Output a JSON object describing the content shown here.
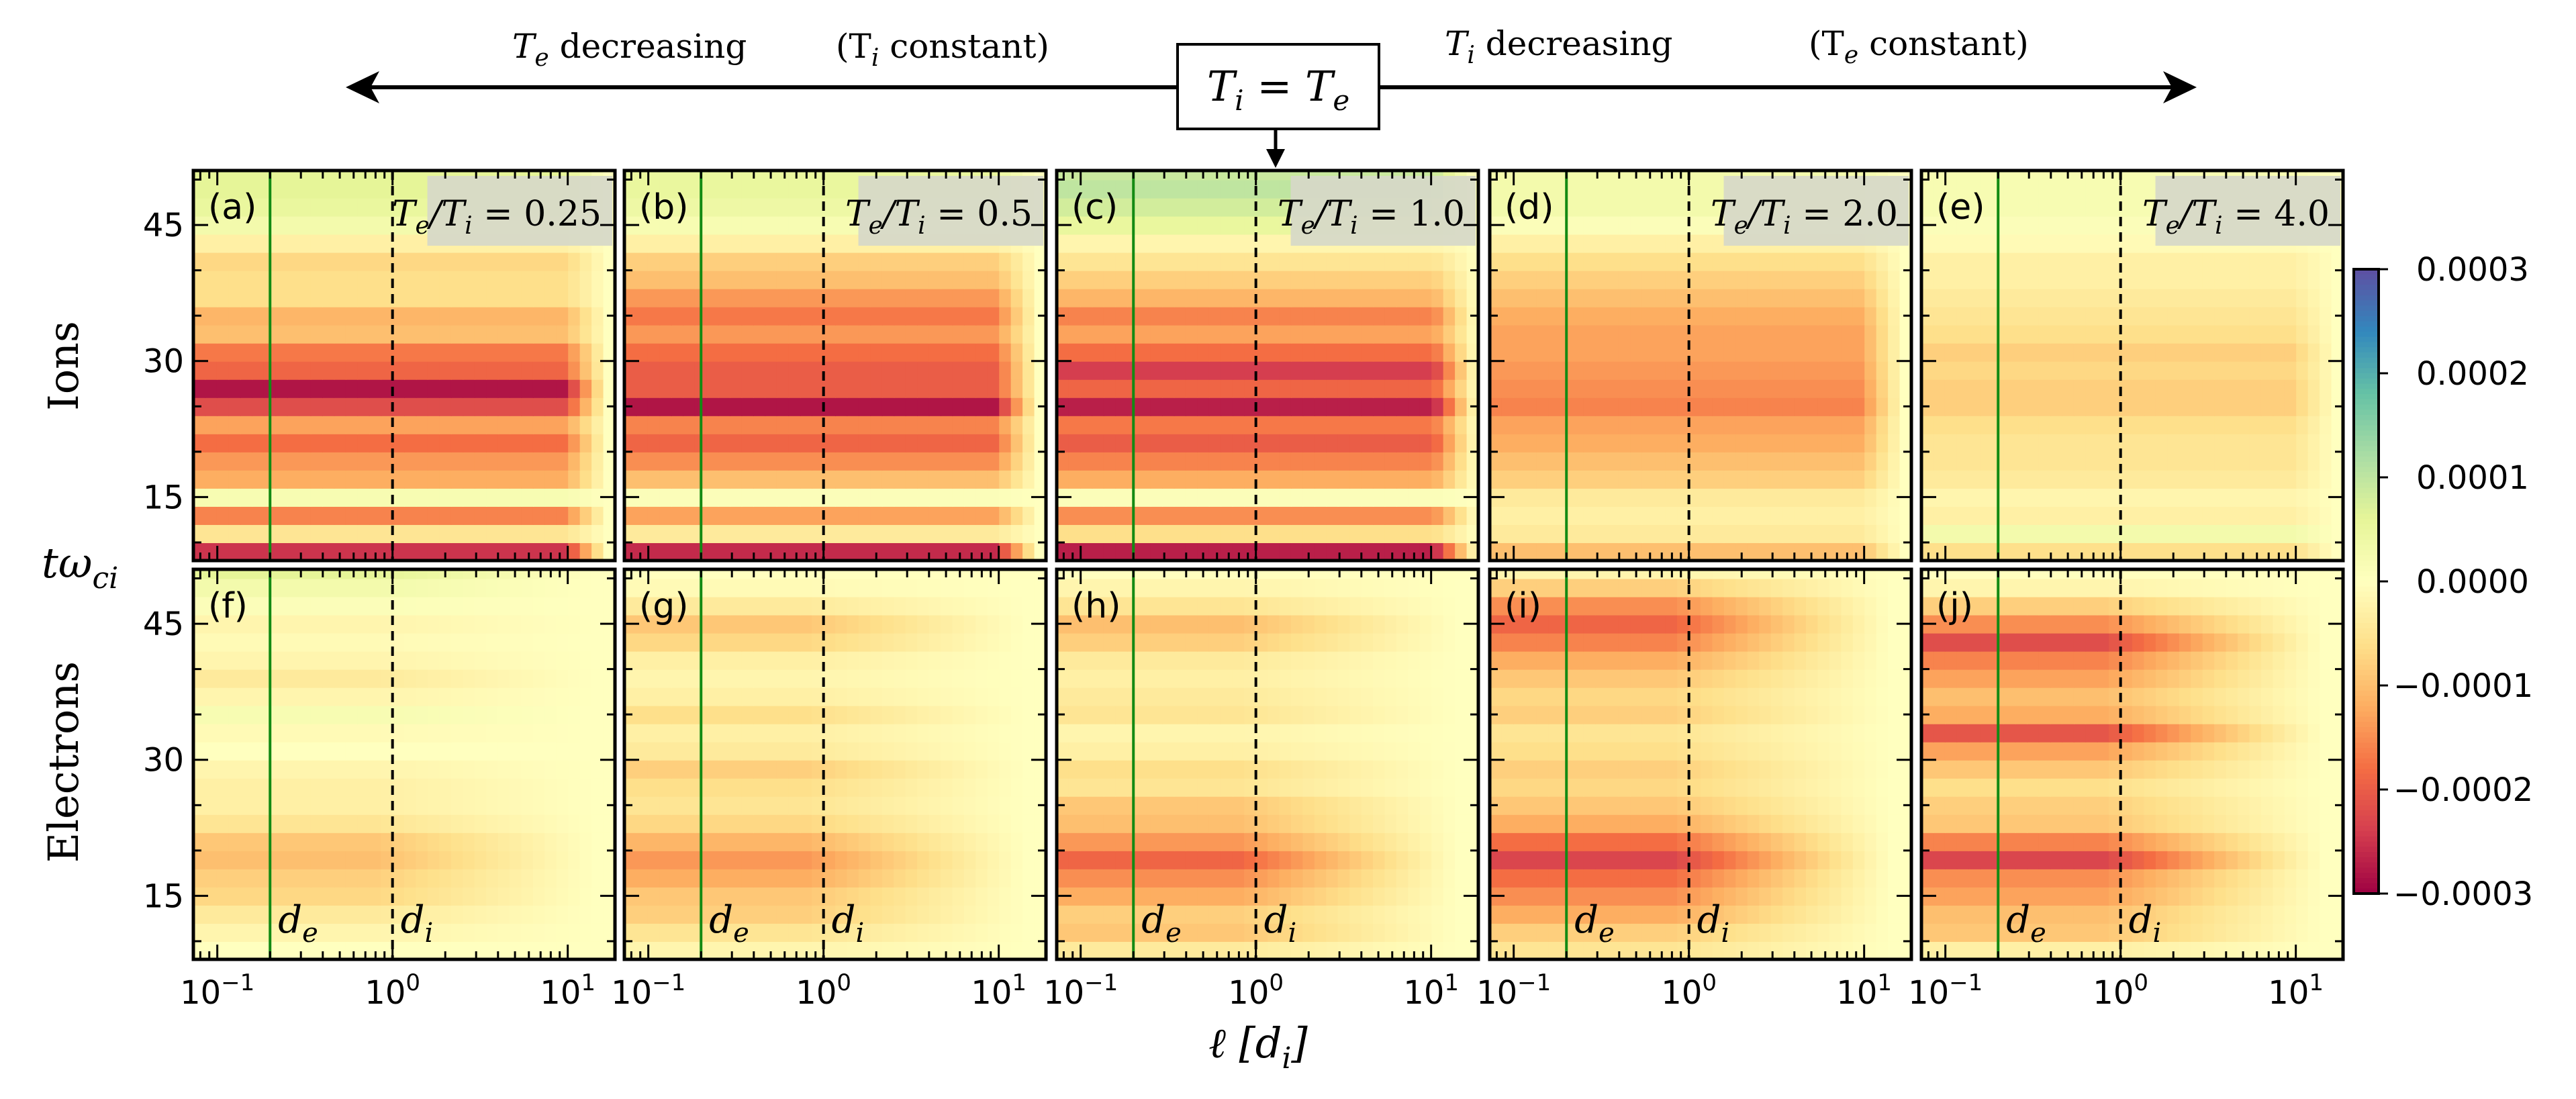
{
  "header": {
    "left_label": {
      "T": "T",
      "sub": "e",
      "rest": " decreasing"
    },
    "left_paren": {
      "open": "(T",
      "sub": "i",
      "rest": " constant)"
    },
    "right_label": {
      "T": "T",
      "sub": "i",
      "rest": " decreasing"
    },
    "right_paren": {
      "open": "(T",
      "sub": "e",
      "rest": " constant)"
    },
    "center_box": {
      "a": "T",
      "a_sub": "i",
      "eq": " = T",
      "b_sub": "e"
    }
  },
  "axes_text": {
    "row_labels": [
      "Ions",
      "Electrons"
    ],
    "ylabel": {
      "main": "tω",
      "sub": "ci"
    },
    "xlabel": {
      "main": "ℓ [d",
      "sub": "i",
      "end": "]"
    },
    "yticks": [
      15,
      30,
      45
    ],
    "ytick_labels": [
      "15",
      "30",
      "45"
    ],
    "xtick_labels": [
      {
        "base": "10",
        "exp": "−1"
      },
      {
        "base": "10",
        "exp": "0"
      },
      {
        "base": "10",
        "exp": "1"
      }
    ],
    "de_label": {
      "main": "d",
      "sub": "e"
    },
    "di_label": {
      "main": "d",
      "sub": "i"
    }
  },
  "colorbar": {
    "range": [
      -0.0003,
      0.0003
    ],
    "tick_labels": [
      "0.0003",
      "0.0002",
      "0.0001",
      "0.0000",
      "−0.0001",
      "−0.0002",
      "−0.0003"
    ],
    "colormap": [
      "#9e0142",
      "#d53e4f",
      "#f46d43",
      "#fdae61",
      "#fee08b",
      "#ffffbf",
      "#e6f598",
      "#abdda4",
      "#66c2a5",
      "#3288bd",
      "#5e4fa2"
    ]
  },
  "colors": {
    "de_line": "#138a13",
    "di_line": "#000000",
    "ratio_box": "#d6d8c8"
  },
  "chart_data": {
    "type": "heatmap",
    "xlabel": "ℓ [d_i]",
    "ylabel": "tω_ci",
    "xscale": "log",
    "xlim": [
      0.073,
      18.6
    ],
    "ylim": [
      8,
      51
    ],
    "t_bins_start": 8,
    "t_bin_width": 2,
    "value_unit": "1e-4",
    "de_position": 0.2,
    "di_position": 1.0,
    "panels": [
      {
        "label": "(a)",
        "row": "Ions",
        "ratio": {
          "T": "T",
          "s1": "e",
          "mid": "/T",
          "s2": "i",
          "val": " = 0.25"
        },
        "cutoff": 12,
        "fade": "sharp",
        "values": [
          -2.5,
          -0.5,
          -1.6,
          0.2,
          -1.2,
          -1.4,
          -1.8,
          -1.3,
          -2.2,
          -2.8,
          -1.9,
          -1.7,
          -1.0,
          -1.1,
          -0.6,
          -0.6,
          -0.7,
          -0.3,
          0.3,
          0.5,
          0.6,
          0.6
        ]
      },
      {
        "label": "(b)",
        "row": "Ions",
        "ratio": {
          "T": "T",
          "s1": "e",
          "mid": "/T",
          "s2": "i",
          "val": " = 0.5"
        },
        "cutoff": 12,
        "fade": "sharp",
        "values": [
          -2.6,
          -0.4,
          -1.3,
          0.1,
          -1.0,
          -1.5,
          -1.9,
          -1.6,
          -2.8,
          -2.0,
          -2.0,
          -1.8,
          -1.4,
          -1.7,
          -1.4,
          -1.0,
          -0.8,
          -0.3,
          0.2,
          0.4,
          0.5,
          0.5
        ]
      },
      {
        "label": "(c)",
        "row": "Ions",
        "ratio": {
          "T": "T",
          "s1": "e",
          "mid": "/T",
          "s2": "i",
          "val": " = 1.0"
        },
        "cutoff": 13,
        "fade": "sharp",
        "values": [
          -2.7,
          -0.6,
          -1.5,
          0.1,
          -1.2,
          -1.6,
          -2.0,
          -1.7,
          -2.7,
          -1.9,
          -2.4,
          -1.8,
          -1.3,
          -1.6,
          -1.1,
          -0.8,
          -0.5,
          -0.2,
          0.5,
          0.8,
          1.0,
          0.9
        ]
      },
      {
        "label": "(d)",
        "row": "Ions",
        "ratio": {
          "T": "T",
          "s1": "e",
          "mid": "/T",
          "s2": "i",
          "val": " = 2.0"
        },
        "cutoff": 12,
        "fade": "sharp",
        "values": [
          -1.0,
          -0.4,
          -0.3,
          -0.4,
          -0.8,
          -1.0,
          -1.2,
          -1.3,
          -1.6,
          -1.5,
          -1.4,
          -1.3,
          -1.3,
          -1.2,
          -1.0,
          -0.8,
          -0.6,
          -0.3,
          0.1,
          0.3,
          0.3,
          0.3
        ]
      },
      {
        "label": "(e)",
        "row": "Ions",
        "ratio": {
          "T": "T",
          "s1": "e",
          "mid": "/T",
          "s2": "i",
          "val": " = 4.0"
        },
        "cutoff": 12,
        "fade": "sharp",
        "values": [
          -0.6,
          0.3,
          -0.3,
          -0.2,
          -0.4,
          -0.5,
          -0.5,
          -0.6,
          -0.8,
          -0.8,
          -0.7,
          -0.8,
          -0.6,
          -0.5,
          -0.4,
          -0.3,
          -0.3,
          -0.1,
          0.1,
          0.2,
          0.2,
          0.2
        ]
      },
      {
        "label": "(f)",
        "row": "Electrons",
        "cutoff": 12,
        "fade": "gradual",
        "values": [
          0.0,
          -0.2,
          -0.4,
          -0.7,
          -0.8,
          -1.0,
          -0.9,
          -0.5,
          -0.3,
          -0.3,
          -0.2,
          0.0,
          -0.1,
          0.2,
          -0.2,
          -0.4,
          -0.2,
          -0.1,
          -0.2,
          0.1,
          0.3,
          0.6
        ]
      },
      {
        "label": "(g)",
        "row": "Electrons",
        "cutoff": 12,
        "fade": "gradual",
        "values": [
          -0.2,
          -0.5,
          -0.8,
          -0.9,
          -1.2,
          -1.4,
          -1.1,
          -0.7,
          -0.5,
          -0.6,
          -0.8,
          -0.4,
          -0.3,
          -0.6,
          -0.3,
          -0.2,
          -0.3,
          -0.7,
          -0.9,
          -0.4,
          -0.1,
          0.0
        ]
      },
      {
        "label": "(h)",
        "row": "Electrons",
        "cutoff": 12,
        "fade": "gradual",
        "values": [
          -0.4,
          -0.9,
          -0.8,
          -1.2,
          -1.5,
          -1.9,
          -1.4,
          -1.0,
          -0.9,
          -0.5,
          -0.6,
          -0.3,
          -0.2,
          -0.5,
          -0.4,
          -0.3,
          -0.4,
          -0.8,
          -1.0,
          -0.5,
          -0.2,
          0.0
        ]
      },
      {
        "label": "(i)",
        "row": "Electrons",
        "cutoff": 12,
        "fade": "gradual",
        "values": [
          -0.5,
          -0.8,
          -1.2,
          -1.5,
          -1.8,
          -2.3,
          -1.8,
          -1.2,
          -0.9,
          -0.7,
          -0.8,
          -0.6,
          -0.5,
          -0.8,
          -0.7,
          -0.9,
          -1.2,
          -1.6,
          -1.9,
          -1.5,
          -0.8,
          -0.2
        ]
      },
      {
        "label": "(j)",
        "row": "Electrons",
        "cutoff": 12,
        "fade": "gradual",
        "values": [
          -0.3,
          -0.9,
          -1.0,
          -1.3,
          -1.5,
          -2.3,
          -1.6,
          -0.9,
          -0.8,
          -0.6,
          -0.9,
          -1.3,
          -2.1,
          -1.2,
          -1.0,
          -1.3,
          -1.6,
          -2.2,
          -1.5,
          -0.8,
          -0.2,
          0.0
        ]
      }
    ]
  }
}
